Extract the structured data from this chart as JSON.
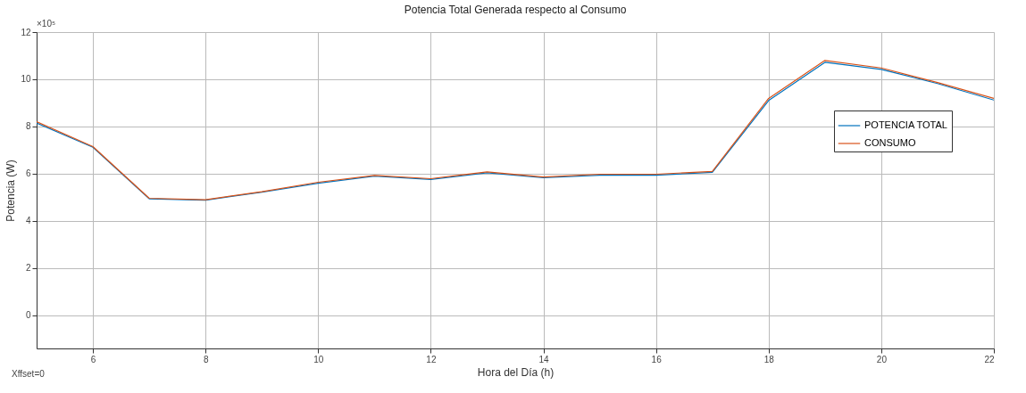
{
  "chart_data": {
    "type": "line",
    "title": "Potencia Total Generada respecto al Consumo",
    "xlabel": "Hora del Día (h)",
    "ylabel": "Potencia (W)",
    "x": [
      5,
      6,
      7,
      8,
      9,
      10,
      11,
      12,
      13,
      14,
      15,
      16,
      17,
      18,
      19,
      20,
      21,
      22
    ],
    "series": [
      {
        "name": "POTENCIA TOTAL",
        "color": "#0072bd",
        "values": [
          8.15,
          7.12,
          4.94,
          4.88,
          5.22,
          5.6,
          5.9,
          5.76,
          6.04,
          5.83,
          5.94,
          5.94,
          6.06,
          9.1,
          10.72,
          10.42,
          9.82,
          9.12
        ]
      },
      {
        "name": "CONSUMO",
        "color": "#d95319",
        "values": [
          8.2,
          7.15,
          4.96,
          4.9,
          5.24,
          5.64,
          5.93,
          5.79,
          6.08,
          5.86,
          5.98,
          5.98,
          6.1,
          9.19,
          10.8,
          10.48,
          9.86,
          9.19
        ]
      }
    ],
    "xlim": [
      5,
      22
    ],
    "ylim": [
      -1.4,
      12
    ],
    "xticks": [
      6,
      8,
      10,
      12,
      14,
      16,
      18,
      20,
      22
    ],
    "yticks": [
      0,
      2,
      4,
      6,
      8,
      10,
      12
    ],
    "grid": true,
    "legend": "top right",
    "annotations": [
      "×10⁵",
      "Xffset=0"
    ]
  }
}
